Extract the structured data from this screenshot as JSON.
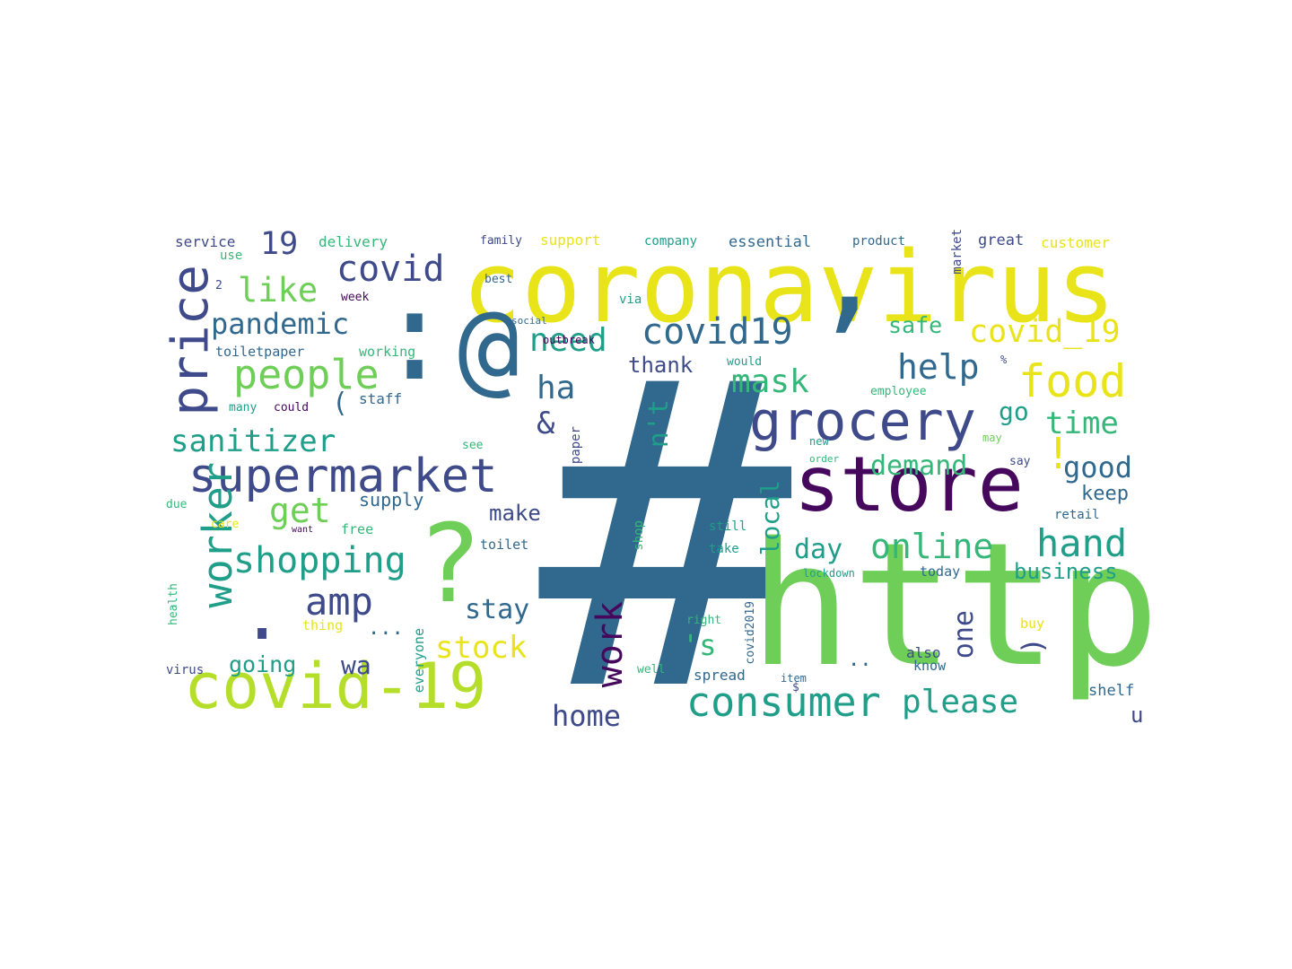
{
  "palette": {
    "purple": "#46085c",
    "indigo": "#3e4a89",
    "blue": "#31688e",
    "teal": "#26828e",
    "seagreen": "#1f9e89",
    "green": "#35b779",
    "lime": "#6ece58",
    "yellowgreen": "#b5de2b",
    "yellow": "#e8e419"
  },
  "words": [
    {
      "text": "#",
      "color": "blue"
    },
    {
      "text": "http",
      "color": "lime"
    },
    {
      "text": "coronavirus",
      "color": "yellow"
    },
    {
      "text": "@",
      "color": "blue"
    },
    {
      "text": "’",
      "color": "blue"
    },
    {
      "text": ":",
      "color": "blue"
    },
    {
      "text": "?",
      "color": "lime"
    },
    {
      "text": "store",
      "color": "purple"
    },
    {
      "text": "covid-19",
      "color": "yellowgreen"
    },
    {
      "text": "grocery",
      "color": "indigo"
    },
    {
      "text": "supermarket",
      "color": "indigo"
    },
    {
      "text": ".",
      "color": "indigo"
    },
    {
      "text": "consumer",
      "color": "seagreen"
    },
    {
      "text": "price",
      "color": "indigo"
    },
    {
      "text": "food",
      "color": "yellow"
    },
    {
      "text": "people",
      "color": "lime"
    },
    {
      "text": "covid19",
      "color": "blue"
    },
    {
      "text": "covid",
      "color": "indigo"
    },
    {
      "text": "pandemic",
      "color": "blue"
    },
    {
      "text": "sanitizer",
      "color": "seagreen"
    },
    {
      "text": "shopping",
      "color": "seagreen"
    },
    {
      "text": "online",
      "color": "green"
    },
    {
      "text": "hand",
      "color": "seagreen"
    },
    {
      "text": "please",
      "color": "seagreen"
    },
    {
      "text": "need",
      "color": "seagreen"
    },
    {
      "text": "like",
      "color": "lime"
    },
    {
      "text": "covid_19",
      "color": "yellow"
    },
    {
      "text": "help",
      "color": "blue"
    },
    {
      "text": "worker",
      "color": "seagreen"
    },
    {
      "text": "amp",
      "color": "indigo"
    },
    {
      "text": "19",
      "color": "indigo"
    },
    {
      "text": "stock",
      "color": "yellow"
    },
    {
      "text": "time",
      "color": "green"
    },
    {
      "text": "work",
      "color": "purple"
    },
    {
      "text": "ha",
      "color": "blue"
    },
    {
      "text": "get",
      "color": "lime"
    },
    {
      "text": "home",
      "color": "indigo"
    },
    {
      "text": "stay",
      "color": "blue"
    },
    {
      "text": "day",
      "color": "seagreen"
    },
    {
      "text": "demand",
      "color": "green"
    },
    {
      "text": "good",
      "color": "blue"
    },
    {
      "text": "mask",
      "color": "green"
    },
    {
      "text": "n't",
      "color": "seagreen"
    },
    {
      "text": "one",
      "color": "indigo"
    },
    {
      "text": "'s",
      "color": "green"
    },
    {
      "text": "!",
      "color": "yellow"
    },
    {
      "text": "&",
      "color": "indigo"
    },
    {
      "text": "(",
      "color": "blue"
    },
    {
      "text": ")",
      "color": "indigo"
    },
    {
      "text": "go",
      "color": "seagreen"
    },
    {
      "text": "local",
      "color": "seagreen"
    },
    {
      "text": "thank",
      "color": "indigo"
    },
    {
      "text": "going",
      "color": "seagreen"
    },
    {
      "text": "safe",
      "color": "green"
    },
    {
      "text": "make",
      "color": "indigo"
    },
    {
      "text": "wa",
      "color": "indigo"
    },
    {
      "text": "business",
      "color": "seagreen"
    },
    {
      "text": "keep",
      "color": "blue"
    },
    {
      "text": "u",
      "color": "indigo"
    },
    {
      "text": "...",
      "color": "blue"
    },
    {
      "text": "..",
      "color": "blue"
    },
    {
      "text": "supply",
      "color": "blue"
    },
    {
      "text": "service",
      "color": "indigo"
    },
    {
      "text": "delivery",
      "color": "green"
    },
    {
      "text": "family",
      "color": "indigo"
    },
    {
      "text": "support",
      "color": "yellow"
    },
    {
      "text": "company",
      "color": "seagreen"
    },
    {
      "text": "essential",
      "color": "blue"
    },
    {
      "text": "product",
      "color": "blue"
    },
    {
      "text": "great",
      "color": "indigo"
    },
    {
      "text": "customer",
      "color": "yellow"
    },
    {
      "text": "market",
      "color": "indigo"
    },
    {
      "text": "use",
      "color": "green"
    },
    {
      "text": "2",
      "color": "indigo"
    },
    {
      "text": "week",
      "color": "purple"
    },
    {
      "text": "best",
      "color": "blue"
    },
    {
      "text": "via",
      "color": "seagreen"
    },
    {
      "text": "social",
      "color": "blue"
    },
    {
      "text": "toiletpaper",
      "color": "blue"
    },
    {
      "text": "working",
      "color": "green"
    },
    {
      "text": "outbreak",
      "color": "purple"
    },
    {
      "text": "would",
      "color": "seagreen"
    },
    {
      "text": "%",
      "color": "indigo"
    },
    {
      "text": "employee",
      "color": "green"
    },
    {
      "text": "staff",
      "color": "blue"
    },
    {
      "text": "many",
      "color": "seagreen"
    },
    {
      "text": "could",
      "color": "purple"
    },
    {
      "text": "see",
      "color": "green"
    },
    {
      "text": "paper",
      "color": "indigo"
    },
    {
      "text": "new",
      "color": "seagreen"
    },
    {
      "text": "order",
      "color": "green"
    },
    {
      "text": "may",
      "color": "lime"
    },
    {
      "text": "say",
      "color": "indigo"
    },
    {
      "text": "due",
      "color": "green"
    },
    {
      "text": "care",
      "color": "yellow"
    },
    {
      "text": "free",
      "color": "green"
    },
    {
      "text": "want",
      "color": "purple"
    },
    {
      "text": "toilet",
      "color": "blue"
    },
    {
      "text": "shop",
      "color": "green"
    },
    {
      "text": "still",
      "color": "seagreen"
    },
    {
      "text": "take",
      "color": "seagreen"
    },
    {
      "text": "retail",
      "color": "blue"
    },
    {
      "text": "lockdown",
      "color": "seagreen"
    },
    {
      "text": "today",
      "color": "blue"
    },
    {
      "text": "health",
      "color": "green"
    },
    {
      "text": "thing",
      "color": "yellow"
    },
    {
      "text": "virus",
      "color": "indigo"
    },
    {
      "text": "everyone",
      "color": "seagreen"
    },
    {
      "text": "covid2019",
      "color": "blue"
    },
    {
      "text": "right",
      "color": "green"
    },
    {
      "text": "well",
      "color": "green"
    },
    {
      "text": "$",
      "color": "indigo"
    },
    {
      "text": "item",
      "color": "blue"
    },
    {
      "text": "spread",
      "color": "blue"
    },
    {
      "text": "know",
      "color": "blue"
    },
    {
      "text": "also",
      "color": "indigo"
    },
    {
      "text": "buy",
      "color": "yellow"
    },
    {
      "text": "shelf",
      "color": "blue"
    }
  ]
}
